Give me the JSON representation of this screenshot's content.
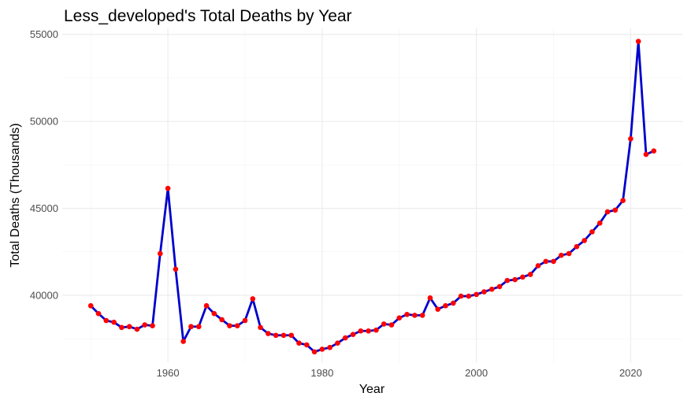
{
  "chart_data": {
    "type": "line",
    "title": "Less_developed's Total Deaths by Year",
    "xlabel": "Year",
    "ylabel": "Total Deaths (Thousands)",
    "xlim": [
      1946.3,
      2026.7
    ],
    "ylim": [
      36150,
      55350
    ],
    "x_ticks": [
      1960,
      1980,
      2000,
      2020
    ],
    "y_ticks": [
      40000,
      45000,
      50000,
      55000
    ],
    "x_minor": [
      1950,
      1970,
      1990,
      2010
    ],
    "y_minor": [
      37500,
      42500,
      47500,
      52500
    ],
    "grid": true,
    "legend": "none",
    "colors": {
      "line": "#0000cd",
      "point": "#ff0000"
    },
    "series": [
      {
        "x": [
          1950,
          1951,
          1952,
          1953,
          1954,
          1955,
          1956,
          1957,
          1958,
          1959,
          1960,
          1961,
          1962,
          1963,
          1964,
          1965,
          1966,
          1967,
          1968,
          1969,
          1970,
          1971,
          1972,
          1973,
          1974,
          1975,
          1976,
          1977,
          1978,
          1979,
          1980,
          1981,
          1982,
          1983,
          1984,
          1985,
          1986,
          1987,
          1988,
          1989,
          1990,
          1991,
          1992,
          1993,
          1994,
          1995,
          1996,
          1997,
          1998,
          1999,
          2000,
          2001,
          2002,
          2003,
          2004,
          2005,
          2006,
          2007,
          2008,
          2009,
          2010,
          2011,
          2012,
          2013,
          2014,
          2015,
          2016,
          2017,
          2018,
          2019,
          2020,
          2021,
          2022,
          2023
        ],
        "values": [
          39400,
          38950,
          38550,
          38450,
          38150,
          38200,
          38050,
          38300,
          38250,
          42400,
          46150,
          41500,
          37350,
          38200,
          38200,
          39400,
          38950,
          38600,
          38250,
          38250,
          38550,
          39800,
          38150,
          37800,
          37700,
          37700,
          37700,
          37250,
          37150,
          36750,
          36900,
          37000,
          37250,
          37550,
          37750,
          37950,
          37950,
          38000,
          38350,
          38300,
          38700,
          38900,
          38850,
          38850,
          39850,
          39200,
          39400,
          39550,
          39950,
          39950,
          40050,
          40200,
          40350,
          40500,
          40850,
          40900,
          41050,
          41200,
          41700,
          41950,
          41950,
          42300,
          42400,
          42800,
          43150,
          43650,
          44150,
          44800,
          44900,
          45450,
          49000,
          54600,
          48100,
          48300
        ]
      }
    ]
  }
}
